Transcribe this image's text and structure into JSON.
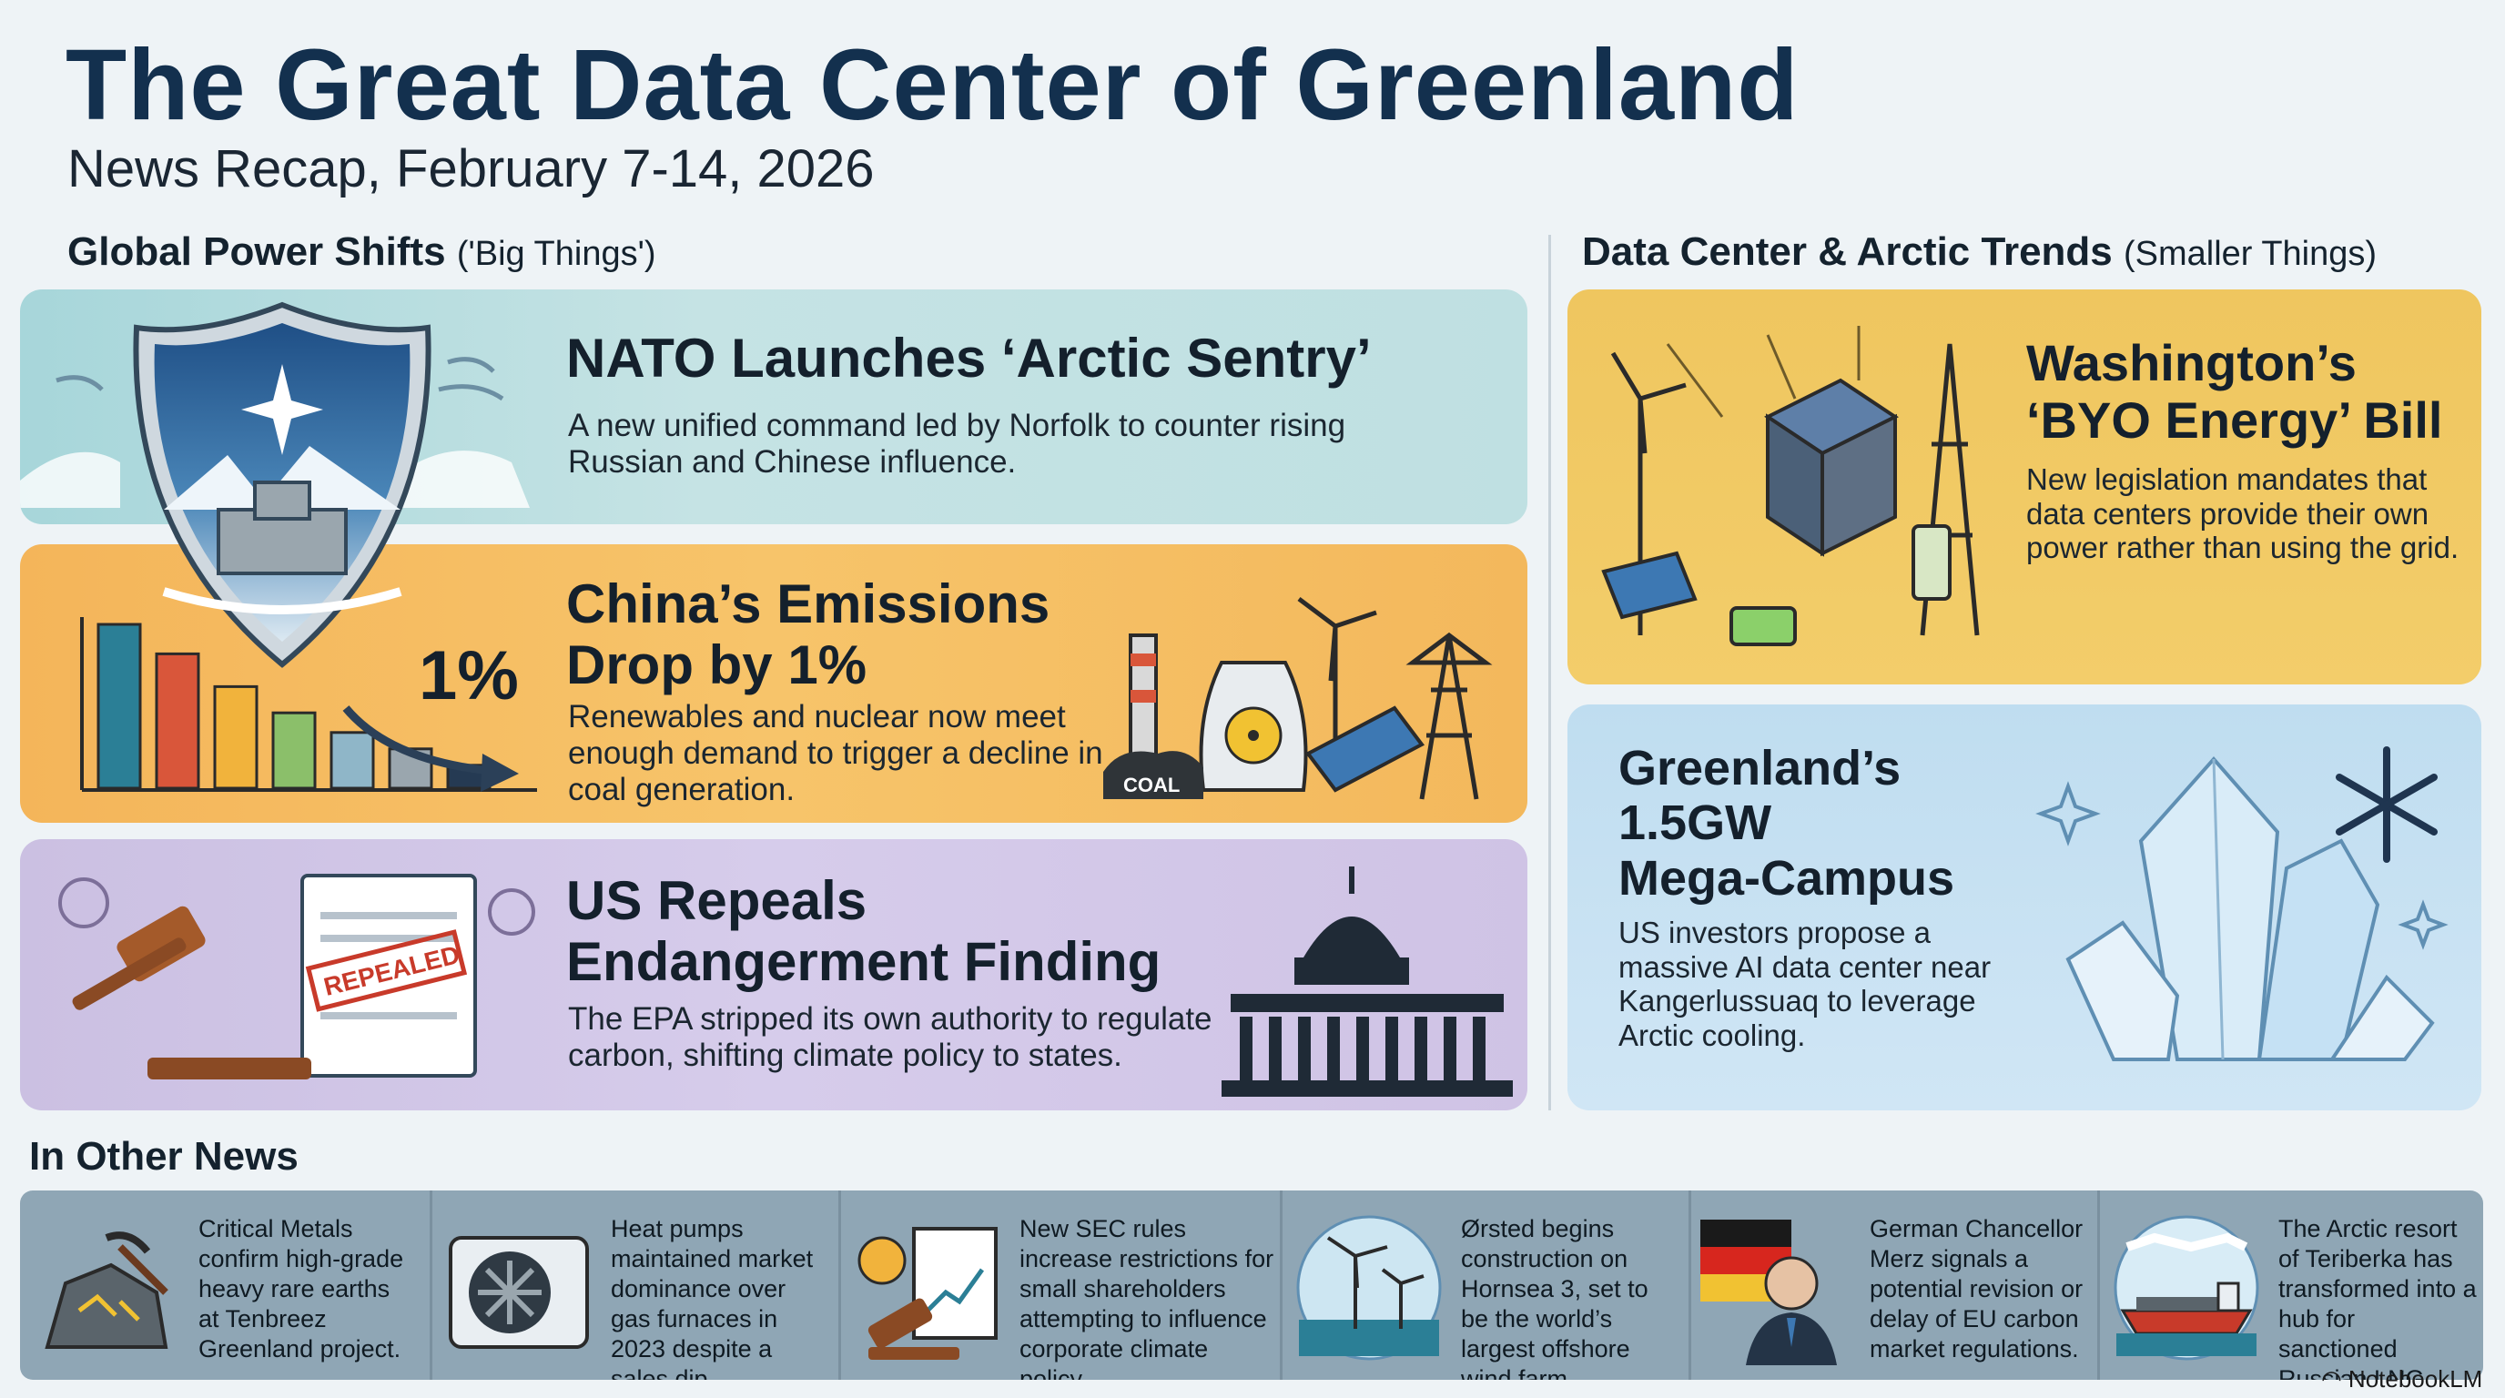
{
  "title": "The Great Data Center of Greenland",
  "subtitle": "News Recap, February 7-14, 2026",
  "sections": {
    "left": {
      "title": "Global Power Shifts",
      "note": "('Big Things')"
    },
    "right": {
      "title": "Data Center & Arctic Trends",
      "note": "(Smaller Things)"
    },
    "other": {
      "title": "In Other News"
    }
  },
  "cards": {
    "nato": {
      "title": "NATO Launches ‘Arctic Sentry’",
      "body": "A new unified command led by Norfolk to counter rising Russian and Chinese influence."
    },
    "china": {
      "title_line1": "China’s Emissions",
      "title_line2": "Drop by 1%",
      "body": "Renewables and nuclear now meet enough demand to trigger a decline in coal generation.",
      "chart_label": "1%",
      "coal_label": "COAL",
      "chart_bars": [
        100,
        82,
        62,
        46,
        34,
        24,
        14
      ],
      "bar_colors": [
        "#2b7f96",
        "#d9563a",
        "#f1b33c",
        "#8bbf6a",
        "#8fb6c8",
        "#9aa6ae",
        "#253a53"
      ]
    },
    "us": {
      "title_line1": "US Repeals",
      "title_line2": "Endangerment Finding",
      "body": "The EPA stripped its own authority to regulate carbon, shifting climate policy to states.",
      "stamp": "REPEALED"
    },
    "wash": {
      "title_line1": "Washington’s",
      "title_line2": "‘BYO Energy’ Bill",
      "body": "New legislation mandates that data centers provide their own power rather than using the grid."
    },
    "green": {
      "title_line1": "Greenland’s",
      "title_line2": "1.5GW",
      "title_line3": "Mega-Campus",
      "body": "US investors propose a massive AI data center near Kangerlussuaq to leverage Arctic cooling."
    }
  },
  "news": [
    {
      "text": "Critical Metals confirm high-grade heavy rare earths at Tenbreez Greenland project.",
      "icon": "rare-earth-ore-icon"
    },
    {
      "text": "Heat pumps maintained market dominance over gas furnaces in 2023 despite a sales dip.",
      "icon": "heat-pump-icon"
    },
    {
      "text": "New SEC rules increase restrictions for small shareholders attempting to influence corporate climate policy.",
      "icon": "sec-gavel-icon"
    },
    {
      "text": "Ørsted begins construction on Hornsea 3, set to be the world’s largest offshore wind farm.",
      "icon": "offshore-wind-icon"
    },
    {
      "text": "German Chancellor Merz signals a potential revision or delay of EU carbon market regulations.",
      "icon": "chancellor-icon"
    },
    {
      "text": "The Arctic resort of Teriberka has transformed into a hub for sanctioned Russian LNG tankers.",
      "icon": "lng-tanker-icon"
    }
  ],
  "brand": "NotebookLM"
}
